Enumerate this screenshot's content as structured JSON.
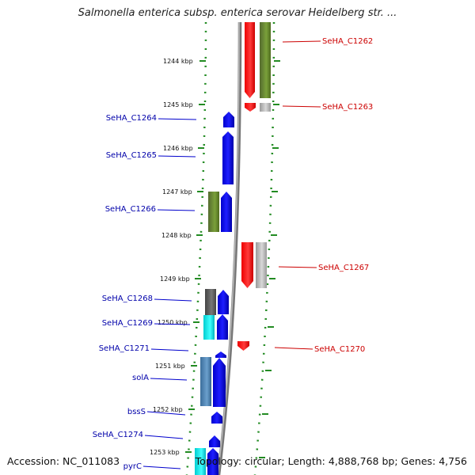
{
  "title": "Salmonella enterica subsp. enterica serovar Heidelberg str. ...",
  "footer": {
    "accession": "Accession: NC_011083",
    "topology": "Topology: circular; Length: 4,888,768 bp; Genes: 4,756"
  },
  "ticks": [
    "1244 kbp",
    "1245 kbp",
    "1246 kbp",
    "1247 kbp",
    "1248 kbp",
    "1249 kbp",
    "1250 kbp",
    "1251 kbp",
    "1252 kbp",
    "1253 kbp"
  ],
  "labels_left": [
    "SeHA_C1264",
    "SeHA_C1265",
    "SeHA_C1266",
    "SeHA_C1268",
    "SeHA_C1269",
    "SeHA_C1271",
    "solA",
    "bssS",
    "SeHA_C1274",
    "pyrC"
  ],
  "labels_right": [
    "SeHA_C1262",
    "SeHA_C1263",
    "SeHA_C1267",
    "SeHA_C1270"
  ],
  "colors": {
    "forward_cds": "#0000ee",
    "reverse_cds": "#ee0000",
    "cog_green": "#6b8e23",
    "cog_gray": "#aaaaaa",
    "cog_dark": "#555555",
    "cog_cyan": "#00e5ee",
    "cog_steel": "#4682b4",
    "backbone": "#888888",
    "dotted": "#228b22"
  }
}
